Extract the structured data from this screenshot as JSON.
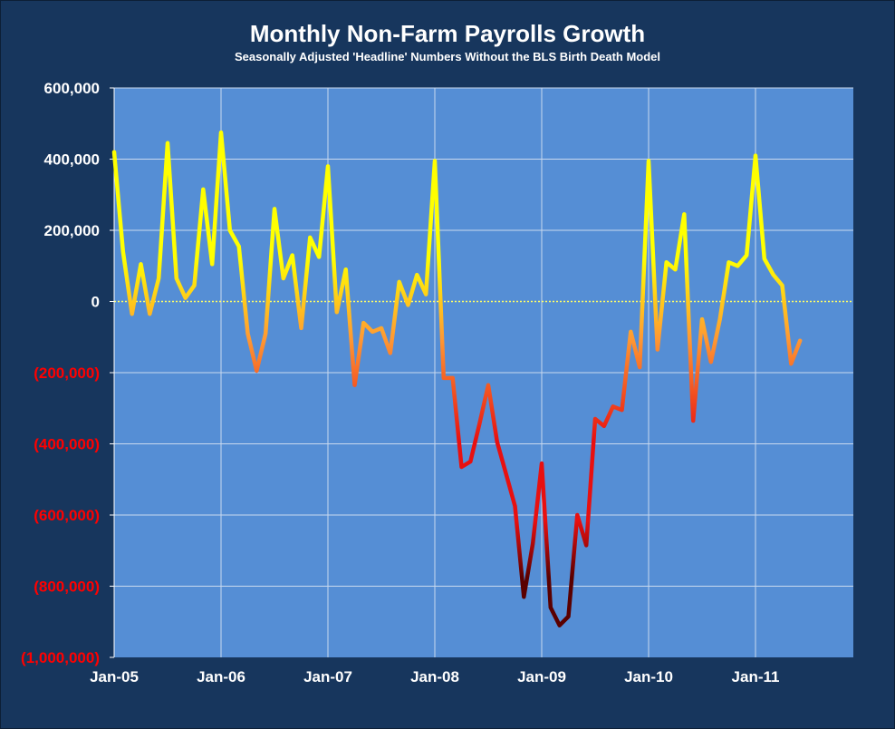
{
  "chart_data": {
    "type": "line",
    "title": "Monthly Non-Farm Payrolls Growth",
    "subtitle": "Seasonally Adjusted 'Headline' Numbers Without the BLS Birth Death Model",
    "xlabel": "",
    "ylabel": "",
    "ylim": [
      -1000000,
      600000
    ],
    "y_ticks": [
      600000,
      400000,
      200000,
      0,
      -200000,
      -400000,
      -600000,
      -800000,
      -1000000
    ],
    "y_tick_labels": [
      "600,000",
      "400,000",
      "200,000",
      "0",
      "(200,000)",
      "(400,000)",
      "(600,000)",
      "(800,000)",
      "(1,000,000)"
    ],
    "x_tick_labels": [
      "Jan-05",
      "Jan-06",
      "Jan-07",
      "Jan-08",
      "Jan-09",
      "Jan-10",
      "Jan-11"
    ],
    "x_start": "Jan-05",
    "x_months_span": 83,
    "grid": true,
    "legend": "none",
    "colors": {
      "background": "#17365d",
      "plot_area": "#558ed5",
      "gridline": "#c9d9ee",
      "zero_line": "#ffff66",
      "positive_label": "#ffffff",
      "negative_label": "#ff0000",
      "line_high": "#ffff00",
      "line_mid": "#ff9933",
      "line_low_red": "#e81010",
      "line_lowest": "#5a0000"
    },
    "series": [
      {
        "values": [
          420000,
          140000,
          -35000,
          105000,
          -35000,
          65000,
          445000,
          65000,
          10000,
          45000,
          315000,
          105000,
          475000,
          200000,
          155000,
          -90000,
          -195000,
          -90000,
          260000,
          65000,
          130000,
          -75000,
          180000,
          125000,
          380000,
          -30000,
          90000,
          -235000,
          -60000,
          -85000,
          -75000,
          -145000,
          55000,
          -10000,
          75000,
          20000,
          395000,
          -215000,
          -215000,
          -465000,
          -450000,
          -345000,
          -235000,
          -395000,
          -485000,
          -575000,
          -830000,
          -680000,
          -455000,
          -860000,
          -910000,
          -885000,
          -600000,
          -685000,
          -330000,
          -350000,
          -295000,
          -305000,
          -85000,
          -185000,
          395000,
          -135000,
          110000,
          90000,
          245000,
          -335000,
          -50000,
          -170000,
          -50000,
          110000,
          100000,
          130000,
          410000,
          120000,
          75000,
          45000,
          -175000,
          -110000
        ]
      }
    ]
  }
}
